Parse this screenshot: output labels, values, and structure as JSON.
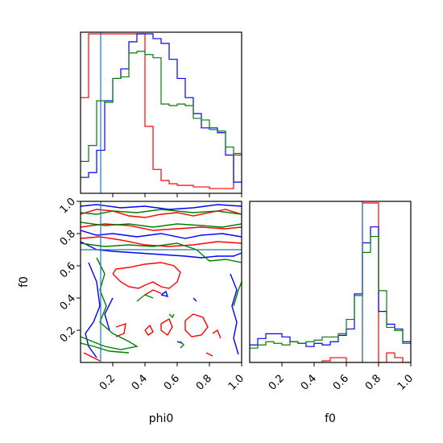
{
  "chart_data": [
    {
      "type": "step-histogram",
      "panel": "phi0 marginal",
      "x": [
        0.0,
        0.05,
        0.1,
        0.15,
        0.2,
        0.25,
        0.3,
        0.35,
        0.4,
        0.45,
        0.5,
        0.55,
        0.6,
        0.65,
        0.7,
        0.75,
        0.8,
        0.85,
        0.9,
        0.95,
        1.0
      ],
      "xlim": [
        0,
        1
      ],
      "series": [
        {
          "color": "#ff0000",
          "values": [
            0.6,
            1.0,
            1.0,
            1.0,
            1.0,
            1.0,
            1.0,
            1.0,
            0.42,
            0.15,
            0.08,
            0.06,
            0.05,
            0.05,
            0.04,
            0.04,
            0.03,
            0.03,
            0.03,
            0.25
          ]
        },
        {
          "color": "#0000ff",
          "values": [
            0.1,
            0.13,
            0.27,
            0.58,
            0.72,
            0.78,
            0.95,
            1.0,
            1.0,
            0.97,
            0.94,
            0.84,
            0.72,
            0.6,
            0.5,
            0.41,
            0.41,
            0.38,
            0.24,
            0.07
          ]
        },
        {
          "color": "#008000",
          "values": [
            0.2,
            0.3,
            0.58,
            0.57,
            0.72,
            0.73,
            0.88,
            0.89,
            0.87,
            0.85,
            0.56,
            0.55,
            0.56,
            0.55,
            0.47,
            0.46,
            0.4,
            0.39,
            0.29,
            0.24
          ]
        }
      ],
      "truth_lines": [
        {
          "axis": "x",
          "value": 0.125,
          "color": "#1f77b4"
        }
      ]
    },
    {
      "type": "contour",
      "panel": "phi0 vs f0",
      "xlabel": "phi0",
      "ylabel": "f0",
      "xlim": [
        0,
        1
      ],
      "ylim": [
        0,
        1
      ],
      "xticks": [
        "0.2",
        "0.4",
        "0.6",
        "0.8",
        "1.0"
      ],
      "yticks": [
        "0.2",
        "0.4",
        "0.6",
        "0.8",
        "1.0"
      ],
      "series": [
        {
          "color": "#ff0000",
          "contours": [
            [
              [
                0.0,
                0.92
              ],
              [
                0.1,
                0.95
              ],
              [
                0.2,
                0.94
              ],
              [
                0.3,
                0.91
              ],
              [
                0.4,
                0.9
              ],
              [
                0.5,
                0.92
              ],
              [
                0.6,
                0.93
              ],
              [
                0.7,
                0.91
              ],
              [
                0.8,
                0.93
              ],
              [
                0.9,
                0.95
              ],
              [
                1.0,
                0.92
              ]
            ],
            [
              [
                0.0,
                0.84
              ],
              [
                0.15,
                0.86
              ],
              [
                0.3,
                0.85
              ],
              [
                0.45,
                0.82
              ],
              [
                0.6,
                0.83
              ],
              [
                0.75,
                0.84
              ],
              [
                0.9,
                0.83
              ],
              [
                1.0,
                0.84
              ]
            ],
            [
              [
                0.0,
                0.77
              ],
              [
                0.12,
                0.78
              ],
              [
                0.25,
                0.76
              ],
              [
                0.4,
                0.73
              ],
              [
                0.55,
                0.72
              ],
              [
                0.7,
                0.73
              ],
              [
                0.85,
                0.75
              ],
              [
                1.0,
                0.74
              ]
            ],
            [
              [
                0.2,
                0.55
              ],
              [
                0.25,
                0.5
              ],
              [
                0.3,
                0.47
              ],
              [
                0.36,
                0.46
              ],
              [
                0.4,
                0.48
              ],
              [
                0.45,
                0.5
              ],
              [
                0.5,
                0.47
              ],
              [
                0.55,
                0.46
              ],
              [
                0.6,
                0.5
              ],
              [
                0.62,
                0.56
              ],
              [
                0.58,
                0.6
              ],
              [
                0.5,
                0.62
              ],
              [
                0.4,
                0.61
              ],
              [
                0.3,
                0.59
              ],
              [
                0.22,
                0.58
              ],
              [
                0.2,
                0.55
              ]
            ],
            [
              [
                0.4,
                0.42
              ],
              [
                0.45,
                0.45
              ],
              [
                0.5,
                0.43
              ]
            ],
            [
              [
                0.22,
                0.22
              ],
              [
                0.28,
                0.24
              ],
              [
                0.27,
                0.18
              ],
              [
                0.22,
                0.16
              ]
            ],
            [
              [
                0.4,
                0.2
              ],
              [
                0.43,
                0.23
              ],
              [
                0.45,
                0.19
              ],
              [
                0.42,
                0.17
              ],
              [
                0.4,
                0.2
              ]
            ],
            [
              [
                0.5,
                0.24
              ],
              [
                0.55,
                0.27
              ],
              [
                0.57,
                0.22
              ],
              [
                0.54,
                0.17
              ],
              [
                0.5,
                0.2
              ],
              [
                0.5,
                0.24
              ]
            ],
            [
              [
                0.65,
                0.26
              ],
              [
                0.7,
                0.3
              ],
              [
                0.76,
                0.28
              ],
              [
                0.79,
                0.22
              ],
              [
                0.75,
                0.17
              ],
              [
                0.69,
                0.16
              ],
              [
                0.65,
                0.2
              ],
              [
                0.65,
                0.26
              ]
            ],
            [
              [
                0.82,
                0.18
              ],
              [
                0.85,
                0.2
              ],
              [
                0.87,
                0.15
              ]
            ],
            [
              [
                0.02,
                0.06
              ],
              [
                0.08,
                0.03
              ],
              [
                0.12,
                0.01
              ]
            ],
            [
              [
                0.78,
                0.06
              ],
              [
                0.82,
                0.04
              ]
            ]
          ]
        },
        {
          "color": "#0000ff",
          "contours": [
            [
              [
                0.0,
                0.97
              ],
              [
                0.1,
                0.98
              ],
              [
                0.25,
                0.96
              ],
              [
                0.4,
                0.97
              ],
              [
                0.55,
                0.95
              ],
              [
                0.7,
                0.96
              ],
              [
                0.85,
                0.98
              ],
              [
                1.0,
                0.97
              ]
            ],
            [
              [
                0.0,
                0.75
              ],
              [
                0.1,
                0.7
              ],
              [
                0.2,
                0.69
              ],
              [
                0.35,
                0.68
              ],
              [
                0.5,
                0.67
              ],
              [
                0.65,
                0.66
              ],
              [
                0.75,
                0.65
              ],
              [
                0.85,
                0.66
              ],
              [
                0.95,
                0.66
              ],
              [
                1.0,
                0.68
              ]
            ],
            [
              [
                0.0,
                0.82
              ],
              [
                0.1,
                0.79
              ],
              [
                0.2,
                0.8
              ],
              [
                0.35,
                0.78
              ],
              [
                0.5,
                0.8
              ],
              [
                0.65,
                0.77
              ],
              [
                0.75,
                0.79
              ],
              [
                0.88,
                0.8
              ],
              [
                1.0,
                0.78
              ]
            ],
            [
              [
                0.05,
                0.62
              ],
              [
                0.1,
                0.5
              ],
              [
                0.12,
                0.35
              ],
              [
                0.08,
                0.25
              ],
              [
                0.03,
                0.18
              ],
              [
                0.05,
                0.1
              ],
              [
                0.1,
                0.03
              ]
            ],
            [
              [
                0.93,
                0.55
              ],
              [
                0.97,
                0.45
              ],
              [
                0.94,
                0.35
              ],
              [
                0.97,
                0.25
              ],
              [
                0.95,
                0.15
              ],
              [
                0.98,
                0.05
              ]
            ],
            [
              [
                0.2,
                0.4
              ],
              [
                0.15,
                0.3
              ],
              [
                0.18,
                0.2
              ]
            ],
            [
              [
                0.5,
                0.42
              ],
              [
                0.53,
                0.44
              ],
              [
                0.54,
                0.41
              ],
              [
                0.5,
                0.42
              ]
            ],
            [
              [
                0.6,
                0.13
              ],
              [
                0.63,
                0.12
              ]
            ],
            [
              [
                0.7,
                0.4
              ],
              [
                0.72,
                0.38
              ]
            ]
          ]
        },
        {
          "color": "#008000",
          "contours": [
            [
              [
                0.0,
                0.93
              ],
              [
                0.1,
                0.92
              ],
              [
                0.2,
                0.94
              ],
              [
                0.35,
                0.93
              ],
              [
                0.5,
                0.95
              ],
              [
                0.7,
                0.93
              ],
              [
                0.85,
                0.94
              ],
              [
                1.0,
                0.92
              ]
            ],
            [
              [
                0.0,
                0.74
              ],
              [
                0.15,
                0.72
              ],
              [
                0.3,
                0.73
              ],
              [
                0.45,
                0.72
              ],
              [
                0.6,
                0.74
              ],
              [
                0.72,
                0.7
              ],
              [
                0.8,
                0.63
              ],
              [
                0.9,
                0.64
              ],
              [
                1.0,
                0.62
              ]
            ],
            [
              [
                0.0,
                0.87
              ],
              [
                0.15,
                0.85
              ],
              [
                0.3,
                0.86
              ],
              [
                0.45,
                0.84
              ],
              [
                0.6,
                0.86
              ],
              [
                0.75,
                0.85
              ],
              [
                0.88,
                0.84
              ],
              [
                1.0,
                0.86
              ]
            ],
            [
              [
                0.1,
                0.65
              ],
              [
                0.15,
                0.55
              ],
              [
                0.12,
                0.45
              ],
              [
                0.16,
                0.35
              ],
              [
                0.12,
                0.25
              ],
              [
                0.2,
                0.18
              ],
              [
                0.3,
                0.13
              ],
              [
                0.35,
                0.1
              ],
              [
                0.25,
                0.08
              ],
              [
                0.15,
                0.1
              ],
              [
                0.05,
                0.14
              ],
              [
                0.0,
                0.16
              ]
            ],
            [
              [
                0.0,
                0.12
              ],
              [
                0.08,
                0.1
              ],
              [
                0.18,
                0.07
              ],
              [
                0.3,
                0.06
              ]
            ],
            [
              [
                0.35,
                0.38
              ],
              [
                0.4,
                0.42
              ],
              [
                0.45,
                0.4
              ]
            ],
            [
              [
                0.55,
                0.3
              ],
              [
                0.57,
                0.28
              ],
              [
                0.58,
                0.3
              ]
            ],
            [
              [
                0.62,
                0.13
              ],
              [
                0.64,
                0.11
              ],
              [
                0.62,
                0.09
              ]
            ],
            [
              [
                0.95,
                0.35
              ],
              [
                0.98,
                0.45
              ],
              [
                1.0,
                0.5
              ]
            ]
          ]
        }
      ],
      "truth_lines": [
        {
          "axis": "x",
          "value": 0.125,
          "color": "#1f77b4"
        },
        {
          "axis": "y",
          "value": 0.7,
          "color": "#1f77b4"
        }
      ]
    },
    {
      "type": "step-histogram",
      "panel": "f0 marginal",
      "xlabel": "f0",
      "xlim": [
        0,
        1
      ],
      "xticks": [
        "0.2",
        "0.4",
        "0.6",
        "0.8",
        "1.0"
      ],
      "x": [
        0.0,
        0.05,
        0.1,
        0.15,
        0.2,
        0.25,
        0.3,
        0.35,
        0.4,
        0.45,
        0.5,
        0.55,
        0.6,
        0.65,
        0.7,
        0.75,
        0.8,
        0.85,
        0.9,
        0.95,
        1.0
      ],
      "series": [
        {
          "color": "#ff0000",
          "values": [
            0.0,
            0.0,
            0.0,
            0.0,
            0.0,
            0.0,
            0.0,
            0.0,
            0.0,
            0.01,
            0.03,
            0.03,
            0.0,
            0.0,
            1.0,
            1.0,
            0.0,
            0.06,
            0.03,
            0.0
          ]
        },
        {
          "color": "#0000ff",
          "values": [
            0.11,
            0.15,
            0.18,
            0.18,
            0.16,
            0.13,
            0.12,
            0.1,
            0.12,
            0.11,
            0.13,
            0.17,
            0.21,
            0.43,
            0.75,
            0.85,
            0.32,
            0.24,
            0.21,
            0.13
          ]
        },
        {
          "color": "#008000",
          "values": [
            0.09,
            0.11,
            0.13,
            0.12,
            0.11,
            0.13,
            0.12,
            0.13,
            0.14,
            0.16,
            0.16,
            0.18,
            0.27,
            0.42,
            0.69,
            0.79,
            0.45,
            0.22,
            0.2,
            0.12
          ]
        }
      ],
      "truth_lines": [
        {
          "axis": "x",
          "value": 0.7,
          "color": "#1f77b4"
        }
      ]
    }
  ]
}
